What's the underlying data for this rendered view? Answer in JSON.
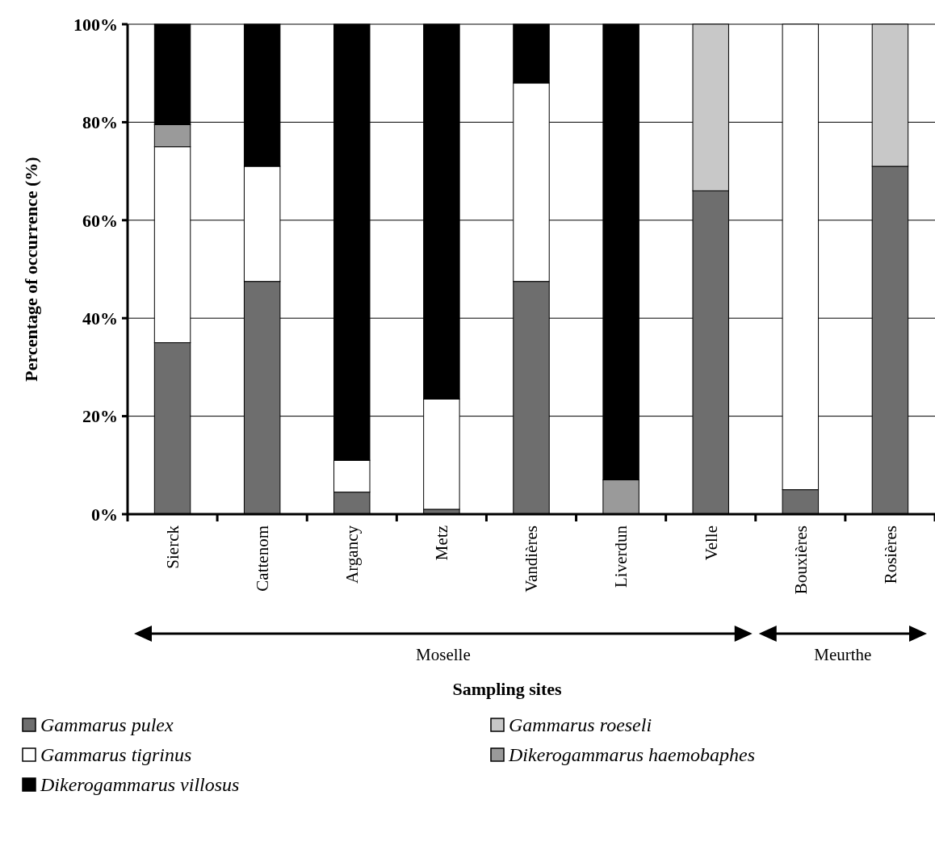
{
  "chart_data": {
    "type": "bar",
    "stacked": true,
    "xlabel": "Sampling sites",
    "ylabel": "Percentage of occurrence (%)",
    "categories": [
      "Sierck",
      "Cattenom",
      "Argancy",
      "Metz",
      "Vandières",
      "Liverdun",
      "Velle",
      "Bouxières",
      "Rosières"
    ],
    "series": [
      {
        "name": "Gammarus pulex",
        "color": "#6e6e6e",
        "values": [
          35,
          47.5,
          4.5,
          1,
          47.5,
          0,
          66,
          5,
          71
        ]
      },
      {
        "name": "Gammarus tigrinus",
        "color": "#ffffff",
        "values": [
          40,
          23.5,
          6.5,
          22.5,
          40.5,
          0,
          0,
          95,
          0
        ]
      },
      {
        "name": "Gammarus roeseli",
        "color": "#c8c8c8",
        "values": [
          0,
          0,
          0,
          0,
          0,
          0,
          34,
          0,
          29
        ]
      },
      {
        "name": "Dikerogammarus haemobaphes",
        "color": "#9a9a9a",
        "values": [
          4.5,
          0,
          0,
          0,
          0,
          7,
          0,
          0,
          0
        ]
      },
      {
        "name": "Dikerogammarus villosus",
        "color": "#000000",
        "values": [
          20.5,
          29,
          89,
          76.5,
          12,
          93,
          0,
          0,
          0
        ]
      }
    ],
    "ylim": [
      0,
      100
    ],
    "yticks": [
      {
        "value": 0,
        "label": "0%"
      },
      {
        "value": 20,
        "label": "20%"
      },
      {
        "value": 40,
        "label": "40%"
      },
      {
        "value": 60,
        "label": "60%"
      },
      {
        "value": 80,
        "label": "80%"
      },
      {
        "value": 100,
        "label": "100%"
      }
    ],
    "grid": "y",
    "legend": "bottom",
    "annotations": [
      "Moselle",
      "Meurthe"
    ]
  }
}
